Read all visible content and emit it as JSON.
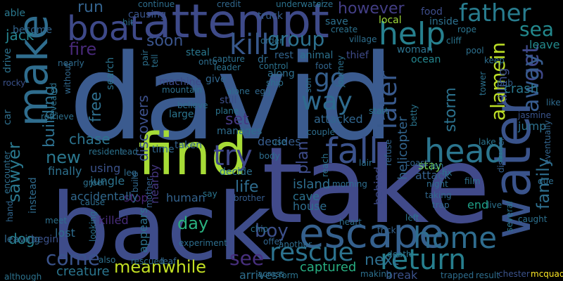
{
  "background": "#000000",
  "words": [
    {
      "text": "david",
      "color": "#3b5b8f"
    },
    {
      "text": "take",
      "color": "#414a8a"
    },
    {
      "text": "back",
      "color": "#3e4c8a"
    },
    {
      "text": "find",
      "color": "#a6db36"
    },
    {
      "text": "attempt",
      "color": "#3e4a89"
    },
    {
      "text": "make",
      "color": "#2f6d8e"
    },
    {
      "text": "water",
      "color": "#3a538b"
    },
    {
      "text": "escape",
      "color": "#35608d"
    },
    {
      "text": "boat",
      "color": "#3e4989"
    },
    {
      "text": "help",
      "color": "#27808e"
    },
    {
      "text": "fall",
      "color": "#3b528b"
    },
    {
      "text": "head",
      "color": "#2b758e"
    },
    {
      "text": "home",
      "color": "#2f6c8e"
    },
    {
      "text": "return",
      "color": "#277f8e"
    },
    {
      "text": "rescue",
      "color": "#2c728e"
    },
    {
      "text": "kill",
      "color": "#38588c"
    },
    {
      "text": "father",
      "color": "#287c8e"
    },
    {
      "text": "try",
      "color": "#3f4788"
    },
    {
      "text": "later",
      "color": "#38598c"
    },
    {
      "text": "way",
      "color": "#2f6b8e"
    },
    {
      "text": "get",
      "color": "#3f4889"
    },
    {
      "text": "away",
      "color": "#375b8d"
    },
    {
      "text": "sawyer",
      "color": "#2a788e"
    },
    {
      "text": "go",
      "color": "#355f8d"
    },
    {
      "text": "group",
      "color": "#2d718e"
    },
    {
      "text": "sea",
      "color": "#23898e"
    },
    {
      "text": "alamein",
      "color": "#bddf26"
    },
    {
      "text": "meanwhile",
      "color": "#c2df23"
    },
    {
      "text": "come",
      "color": "#3a538b"
    },
    {
      "text": "see",
      "color": "#472f7d"
    },
    {
      "text": "family",
      "color": "#2e6e8e"
    },
    {
      "text": "boy",
      "color": "#3c4f8a"
    },
    {
      "text": "day",
      "color": "#2ab07f"
    },
    {
      "text": "new",
      "color": "#2a778e"
    },
    {
      "text": "however",
      "color": "#433e85"
    },
    {
      "text": "fire",
      "color": "#482979"
    },
    {
      "text": "run",
      "color": "#33628d"
    },
    {
      "text": "jack",
      "color": "#25848e"
    },
    {
      "text": "storm",
      "color": "#2c728e"
    },
    {
      "text": "building",
      "color": "#2d708e"
    },
    {
      "text": "free",
      "color": "#2e6f8e"
    },
    {
      "text": "soon",
      "color": "#3a548c"
    },
    {
      "text": "set",
      "color": "#453882"
    },
    {
      "text": "plan",
      "color": "#3e4c8a"
    },
    {
      "text": "life",
      "color": "#2f6c8e"
    },
    {
      "text": "next",
      "color": "#2e6e8e"
    },
    {
      "text": "dog",
      "color": "#26828e"
    },
    {
      "text": "chase",
      "color": "#2c738e"
    },
    {
      "text": "discovers",
      "color": "#3c4f8a"
    },
    {
      "text": "captured",
      "color": "#27ad81"
    },
    {
      "text": "creature",
      "color": "#2b758e"
    },
    {
      "text": "island",
      "color": "#2e6e8e"
    },
    {
      "text": "helicopter",
      "color": "#32658e"
    },
    {
      "text": "killing",
      "color": "#3d4e8a"
    },
    {
      "text": "crash",
      "color": "#2a788e"
    },
    {
      "text": "jump",
      "color": "#2d718e"
    },
    {
      "text": "leave",
      "color": "#238a8d"
    },
    {
      "text": "attacked",
      "color": "#31668e"
    },
    {
      "text": "decides",
      "color": "#365c8d"
    },
    {
      "text": "stay",
      "color": "#73d056"
    },
    {
      "text": "attack",
      "color": "#34608d"
    },
    {
      "text": "behind",
      "color": "#3e4a89"
    },
    {
      "text": "cave",
      "color": "#2c728e"
    },
    {
      "text": "house",
      "color": "#2e6d8e"
    },
    {
      "text": "end",
      "color": "#1fa088"
    },
    {
      "text": "break",
      "color": "#3b528b"
    },
    {
      "text": "arrives",
      "color": "#2e6e8e"
    },
    {
      "text": "finally",
      "color": "#2d708e"
    },
    {
      "text": "stop",
      "color": "#482677"
    },
    {
      "text": "accidentally",
      "color": "#31688e"
    },
    {
      "text": "killed",
      "color": "#472c7a"
    },
    {
      "text": "lost",
      "color": "#2f6c8e"
    },
    {
      "text": "appears",
      "color": "#2d718e"
    },
    {
      "text": "human",
      "color": "#33628d"
    },
    {
      "text": "nearby",
      "color": "#453781"
    },
    {
      "text": "jungle",
      "color": "#2c738e"
    },
    {
      "text": "using",
      "color": "#3b528b"
    },
    {
      "text": "time",
      "color": "#31678e"
    },
    {
      "text": "taken",
      "color": "#34618d"
    },
    {
      "text": "manages",
      "color": "#2e6d8e"
    },
    {
      "text": "still",
      "color": "#3c4f8a"
    },
    {
      "text": "large",
      "color": "#2b748e"
    },
    {
      "text": "steal",
      "color": "#2a778e"
    },
    {
      "text": "machine",
      "color": "#3e4a89"
    },
    {
      "text": "search",
      "color": "#2c738e"
    },
    {
      "text": "give",
      "color": "#31668e"
    },
    {
      "text": "dr",
      "color": "#2f6b8e"
    },
    {
      "text": "along",
      "color": "#2e6e8e"
    },
    {
      "text": "rest",
      "color": "#32658e"
    },
    {
      "text": "animal",
      "color": "#2c718e"
    },
    {
      "text": "thief",
      "color": "#3e4a89"
    },
    {
      "text": "woman",
      "color": "#2c728e"
    },
    {
      "text": "ocean",
      "color": "#24868e"
    },
    {
      "text": "food",
      "color": "#3d4d8a"
    },
    {
      "text": "inside",
      "color": "#2d708e"
    },
    {
      "text": "truck",
      "color": "#365d8d"
    },
    {
      "text": "causing",
      "color": "#3a548c"
    },
    {
      "text": "save",
      "color": "#2d708e"
    },
    {
      "text": "local",
      "color": "#9fda3a"
    },
    {
      "text": "become",
      "color": "#32648e"
    },
    {
      "text": "able",
      "color": "#2a788e"
    },
    {
      "text": "decide",
      "color": "#2d708e"
    },
    {
      "text": "instead",
      "color": "#2f6b8e"
    },
    {
      "text": "begin",
      "color": "#3b528b"
    },
    {
      "text": "leaving",
      "color": "#31688e"
    },
    {
      "text": "drive",
      "color": "#2c728e"
    },
    {
      "text": "car",
      "color": "#2e6f8e"
    },
    {
      "text": "rocky",
      "color": "#3b528b"
    },
    {
      "text": "hit",
      "color": "#2c718e"
    },
    {
      "text": "onto",
      "color": "#2e6e8e"
    },
    {
      "text": "cliff",
      "color": "#2b758e"
    },
    {
      "text": "pool",
      "color": "#2d708e"
    },
    {
      "text": "keep",
      "color": "#2e6e8e"
    },
    {
      "text": "pub",
      "color": "#34608d"
    },
    {
      "text": "tower",
      "color": "#2c718e"
    },
    {
      "text": "like",
      "color": "#2f6b8e"
    },
    {
      "text": "jasmine",
      "color": "#3a548c"
    },
    {
      "text": "eventually",
      "color": "#32658e"
    },
    {
      "text": "lake",
      "color": "#2b748e"
    },
    {
      "text": "discover",
      "color": "#34608d"
    },
    {
      "text": "several",
      "color": "#2a768e"
    },
    {
      "text": "caught",
      "color": "#2d708e"
    },
    {
      "text": "result",
      "color": "#2e6e8e"
    },
    {
      "text": "mcquade",
      "color": "#fde725"
    },
    {
      "text": "chester",
      "color": "#3b528b"
    },
    {
      "text": "trapped",
      "color": "#2e6d8e"
    },
    {
      "text": "death",
      "color": "#2c728e"
    },
    {
      "text": "across",
      "color": "#2e6e8e"
    },
    {
      "text": "brother",
      "color": "#365c8d"
    },
    {
      "text": "chip",
      "color": "#2c718e"
    },
    {
      "text": "offer",
      "color": "#32658e"
    },
    {
      "text": "another",
      "color": "#2f6c8e"
    },
    {
      "text": "making",
      "color": "#2d708e"
    },
    {
      "text": "form",
      "color": "#2c728e"
    },
    {
      "text": "trick",
      "color": "#33628d"
    },
    {
      "text": "heart",
      "color": "#2e6e8e"
    },
    {
      "text": "trap",
      "color": "#31688e"
    },
    {
      "text": "left",
      "color": "#2b748e"
    },
    {
      "text": "although",
      "color": "#2c728e"
    },
    {
      "text": "also",
      "color": "#2d708e"
    },
    {
      "text": "rescued",
      "color": "#2f6b8e"
    },
    {
      "text": "leaf",
      "color": "#32658e"
    },
    {
      "text": "experiment",
      "color": "#2e6e8e"
    },
    {
      "text": "looking",
      "color": "#2c718e"
    },
    {
      "text": "meet",
      "color": "#2d708e"
    },
    {
      "text": "hand",
      "color": "#31668e"
    },
    {
      "text": "cause",
      "color": "#2e6d8e"
    },
    {
      "text": "mother",
      "color": "#34608d"
    },
    {
      "text": "say",
      "color": "#2b758e"
    },
    {
      "text": "green",
      "color": "#2d708e"
    },
    {
      "text": "resident",
      "color": "#2c728e"
    },
    {
      "text": "lead",
      "color": "#2e6e8e"
    },
    {
      "text": "leg",
      "color": "#2f6b8e"
    },
    {
      "text": "build",
      "color": "#31688e"
    },
    {
      "text": "use",
      "color": "#2c718e"
    },
    {
      "text": "body",
      "color": "#2e6e8e"
    },
    {
      "text": "lair",
      "color": "#2d708e"
    },
    {
      "text": "refuse",
      "color": "#32658e"
    },
    {
      "text": "reach",
      "color": "#2c728e"
    },
    {
      "text": "morning",
      "color": "#2e6d8e"
    },
    {
      "text": "start",
      "color": "#2b748e"
    },
    {
      "text": "film",
      "color": "#2d708e"
    },
    {
      "text": "night",
      "color": "#2e6e8e"
    },
    {
      "text": "taking",
      "color": "#31688e"
    },
    {
      "text": "live",
      "color": "#2c718e"
    },
    {
      "text": "couple",
      "color": "#2e6e8e"
    },
    {
      "text": "jen",
      "color": "#2d708e"
    },
    {
      "text": "fix",
      "color": "#2c728e"
    },
    {
      "text": "coast",
      "color": "#32658e"
    },
    {
      "text": "due",
      "color": "#2e6d8e"
    },
    {
      "text": "betty",
      "color": "#2b758e"
    },
    {
      "text": "capture",
      "color": "#2d708e"
    },
    {
      "text": "leader",
      "color": "#2c718e"
    },
    {
      "text": "alone",
      "color": "#2e6e8e"
    },
    {
      "text": "egg",
      "color": "#31688e"
    },
    {
      "text": "control",
      "color": "#2c728e"
    },
    {
      "text": "ship",
      "color": "#2d708e"
    },
    {
      "text": "son",
      "color": "#2e6e8e"
    },
    {
      "text": "foot",
      "color": "#32658e"
    },
    {
      "text": "journey",
      "color": "#2c718e"
    },
    {
      "text": "mountain",
      "color": "#2d708e"
    },
    {
      "text": "believe",
      "color": "#2e6e8e"
    },
    {
      "text": "nearly",
      "color": "#2f6b8e"
    },
    {
      "text": "without",
      "color": "#31688e"
    },
    {
      "text": "revealed",
      "color": "#2c728e"
    },
    {
      "text": "retrieve",
      "color": "#2d708e"
    },
    {
      "text": "encounter",
      "color": "#2e6e8e"
    },
    {
      "text": "plane",
      "color": "#2b748e"
    },
    {
      "text": "tell",
      "color": "#2c718e"
    },
    {
      "text": "pair",
      "color": "#2d708e"
    },
    {
      "text": "continue",
      "color": "#2e6e8e"
    },
    {
      "text": "credit",
      "color": "#31688e"
    },
    {
      "text": "underwater",
      "color": "#2c728e"
    },
    {
      "text": "size",
      "color": "#2d708e"
    },
    {
      "text": "village",
      "color": "#2e6e8e"
    },
    {
      "text": "create",
      "color": "#2c718e"
    },
    {
      "text": "rope",
      "color": "#2b748e"
    },
    {
      "text": "order",
      "color": "#2d708e"
    }
  ]
}
